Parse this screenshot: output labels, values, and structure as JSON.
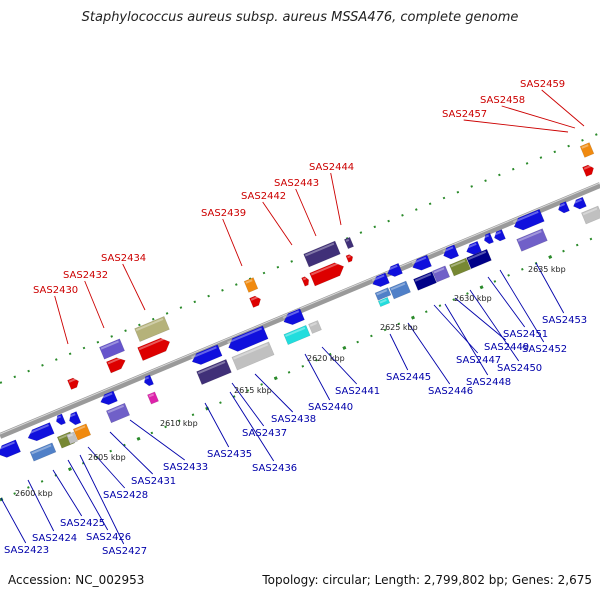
{
  "title": "Staphylococcus aureus subsp. aureus MSSA476, complete genome",
  "footer": {
    "accession": "Accession: NC_002953",
    "topology": "Topology: circular; Length: 2,799,802 bp; Genes: 2,675"
  },
  "colors": {
    "forward_label": "#cc0000",
    "reverse_label": "#0000aa",
    "backbone": "#a0a0a0",
    "tick": "#2a8a2a"
  },
  "scale_labels": [
    "2600 kbp",
    "2605 kbp",
    "2610 kbp",
    "2615 kbp",
    "2620 kbp",
    "2625 kbp",
    "2630 kbp",
    "2635 kbp"
  ],
  "forward_genes": [
    "SAS2430",
    "SAS2432",
    "SAS2434",
    "SAS2439",
    "SAS2442",
    "SAS2443",
    "SAS2444",
    "SAS2457",
    "SAS2458",
    "SAS2459"
  ],
  "reverse_genes": [
    "SAS2423",
    "SAS2424",
    "SAS2425",
    "SAS2426",
    "SAS2427",
    "SAS2428",
    "SAS2431",
    "SAS2433",
    "SAS2435",
    "SAS2436",
    "SAS2437",
    "SAS2438",
    "SAS2440",
    "SAS2441",
    "SAS2445",
    "SAS2446",
    "SAS2447",
    "SAS2448",
    "SAS2449",
    "SAS2450",
    "SAS2451",
    "SAS2452",
    "SAS2453"
  ]
}
